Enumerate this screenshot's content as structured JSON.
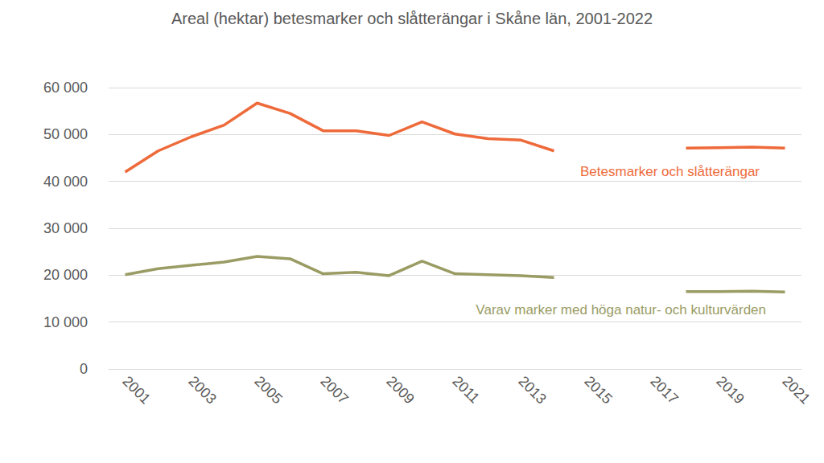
{
  "chart_data": {
    "type": "line",
    "title": "Areal (hektar) betesmarker och slåtterängar i Skåne län, 2001-2022",
    "categories": [
      "2001",
      null,
      "2003",
      null,
      "2005",
      null,
      "2007",
      null,
      "2009",
      null,
      "2011",
      null,
      "2013",
      null,
      "2015",
      null,
      "2017",
      null,
      "2019",
      null,
      "2021"
    ],
    "series": [
      {
        "name": "Betesmarker och slåtterängar",
        "color": "#ee6a3a",
        "values": [
          42000,
          46500,
          49500,
          52000,
          56700,
          54500,
          50800,
          50800,
          49800,
          52700,
          50100,
          49100,
          48800,
          46500,
          null,
          null,
          null,
          47100,
          47200,
          47300,
          47100
        ]
      },
      {
        "name": "Varav marker med höga natur- och kulturvärden",
        "color": "#9a9c64",
        "values": [
          20100,
          21400,
          22100,
          22800,
          24000,
          23500,
          20300,
          20600,
          19900,
          23000,
          20300,
          20100,
          19900,
          19500,
          null,
          null,
          null,
          16500,
          16500,
          16600,
          16400
        ]
      }
    ],
    "ylim": [
      0,
      60000
    ],
    "yticks": [
      0,
      {
        "value": 10000,
        "label": "10 000"
      },
      {
        "value": 20000,
        "label": "20 000"
      },
      {
        "value": 30000,
        "label": "30 000"
      },
      {
        "value": 40000,
        "label": "40 000"
      },
      {
        "value": 50000,
        "label": "50 000"
      },
      {
        "value": 60000,
        "label": "60 000"
      }
    ],
    "grid": true
  }
}
